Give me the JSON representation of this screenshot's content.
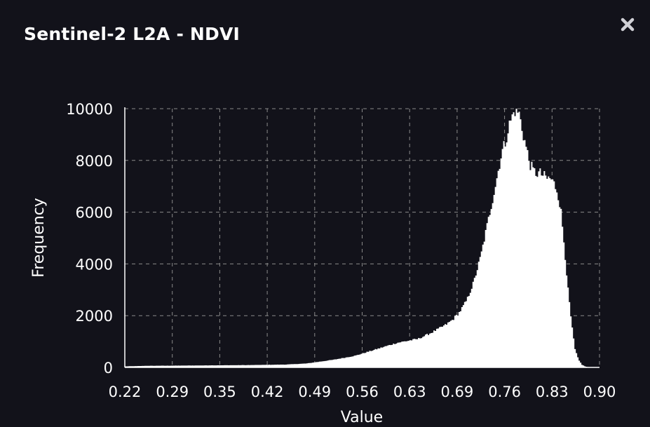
{
  "dialog": {
    "title": "Sentinel-2 L2A - NDVI",
    "close_icon": "close-icon"
  },
  "colors": {
    "background": "#12121a",
    "bars": "#ffffff",
    "grid": "#8a8a8a",
    "text": "#ffffff"
  },
  "chart_data": {
    "type": "bar",
    "title": "",
    "xlabel": "Value",
    "ylabel": "Frequency",
    "xlim": [
      0.22,
      0.9
    ],
    "ylim": [
      0,
      10000
    ],
    "x_ticks": [
      "0.22",
      "0.29",
      "0.35",
      "0.42",
      "0.49",
      "0.56",
      "0.63",
      "0.69",
      "0.76",
      "0.83",
      "0.90"
    ],
    "y_ticks": [
      "0",
      "2000",
      "4000",
      "6000",
      "8000",
      "10000"
    ],
    "grid": true,
    "grid_style": "dashed",
    "legend": "none",
    "profile": {
      "x": [
        0.22,
        0.25,
        0.3,
        0.35,
        0.4,
        0.45,
        0.48,
        0.52,
        0.55,
        0.58,
        0.61,
        0.64,
        0.66,
        0.68,
        0.69,
        0.7,
        0.71,
        0.72,
        0.73,
        0.74,
        0.75,
        0.755,
        0.76,
        0.765,
        0.77,
        0.775,
        0.78,
        0.785,
        0.79,
        0.795,
        0.8,
        0.805,
        0.81,
        0.815,
        0.82,
        0.825,
        0.83,
        0.835,
        0.84,
        0.845,
        0.85,
        0.855,
        0.86,
        0.865,
        0.87,
        0.875,
        0.88,
        0.885,
        0.89,
        0.895,
        0.9
      ],
      "y": [
        40,
        60,
        70,
        80,
        90,
        110,
        150,
        300,
        450,
        700,
        950,
        1100,
        1350,
        1650,
        1850,
        2150,
        2600,
        3300,
        4300,
        5600,
        6900,
        7600,
        8300,
        8700,
        9300,
        9700,
        10000,
        9800,
        9100,
        8500,
        7900,
        7600,
        7500,
        7500,
        7400,
        7300,
        7300,
        7100,
        6800,
        6000,
        4600,
        3000,
        1700,
        700,
        300,
        100,
        30,
        10,
        0,
        0,
        0
      ]
    }
  }
}
